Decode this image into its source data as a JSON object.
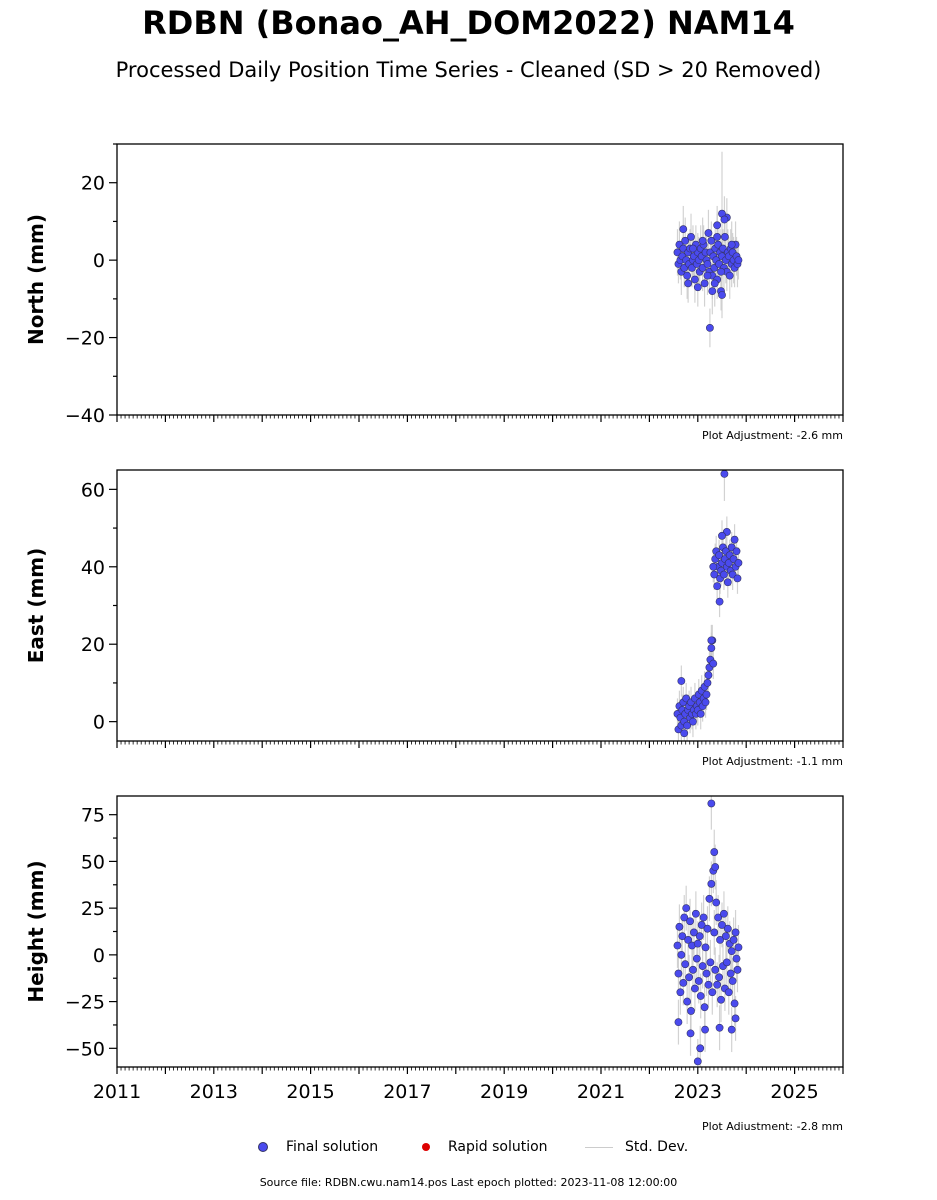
{
  "title": "RDBN (Bonao_AH_DOM2022) NAM14",
  "subtitle": "Processed Daily Position Time Series - Cleaned (SD > 20 Removed)",
  "colors": {
    "final": "#4a4aee",
    "final_edge": "#333366",
    "rapid": "#dd0000",
    "stddev": "#c8c8c8"
  },
  "chart_data": [
    {
      "type": "scatter",
      "ylabel": "North (mm)",
      "ylim": [
        -40,
        30
      ],
      "yticks": [
        -40,
        -20,
        0,
        20
      ],
      "ytick_labels": [
        "−40",
        "−20",
        "0",
        "20"
      ],
      "xlim": [
        2011,
        2026
      ],
      "adjustment": "Plot Adjustment: -2.6 mm",
      "series_name": "Final solution",
      "x": [
        2022.58,
        2022.6,
        2022.62,
        2022.64,
        2022.66,
        2022.68,
        2022.7,
        2022.72,
        2022.74,
        2022.76,
        2022.78,
        2022.8,
        2022.82,
        2022.84,
        2022.86,
        2022.88,
        2022.9,
        2022.92,
        2022.94,
        2022.96,
        2022.98,
        2023.0,
        2023.02,
        2023.04,
        2023.06,
        2023.08,
        2023.1,
        2023.12,
        2023.14,
        2023.16,
        2023.18,
        2023.2,
        2023.22,
        2023.24,
        2023.26,
        2023.28,
        2023.3,
        2023.32,
        2023.34,
        2023.36,
        2023.38,
        2023.4,
        2023.42,
        2023.44,
        2023.46,
        2023.48,
        2023.5,
        2023.52,
        2023.54,
        2023.56,
        2023.58,
        2023.6,
        2023.62,
        2023.64,
        2023.66,
        2023.68,
        2023.7,
        2023.72,
        2023.74,
        2023.76,
        2023.78,
        2023.8,
        2023.82,
        2023.84,
        2022.7,
        2022.8,
        2022.9,
        2023.0,
        2023.1,
        2023.2,
        2023.3,
        2023.4,
        2023.5,
        2023.6,
        2023.7,
        2023.25,
        2023.5,
        2023.55,
        2023.4,
        2023.48,
        2023.35
      ],
      "y": [
        2,
        -1,
        4,
        0,
        -3,
        1,
        3,
        -2,
        5,
        0,
        -4,
        2,
        -1,
        3,
        6,
        -2,
        0,
        1,
        -5,
        4,
        -1,
        2,
        0,
        -3,
        3,
        1,
        -2,
        4,
        -6,
        2,
        0,
        -1,
        7,
        -3,
        2,
        5,
        -4,
        1,
        -2,
        3,
        0,
        -5,
        4,
        -1,
        2,
        -8,
        1,
        3,
        -2,
        6,
        0,
        -3,
        2,
        1,
        -4,
        3,
        -1,
        2,
        0,
        -2,
        4,
        1,
        -1,
        0,
        8,
        -6,
        3,
        -7,
        5,
        -4,
        -8,
        9,
        -9,
        11,
        4,
        -17.5,
        12,
        10.5,
        6,
        -3,
        -6
      ],
      "err": [
        6,
        5,
        6,
        5,
        6,
        5,
        6,
        5,
        6,
        5,
        6,
        5,
        6,
        5,
        6,
        5,
        6,
        5,
        6,
        5,
        6,
        5,
        6,
        5,
        6,
        5,
        6,
        5,
        6,
        5,
        6,
        5,
        6,
        5,
        6,
        5,
        6,
        5,
        6,
        5,
        6,
        5,
        6,
        5,
        6,
        5,
        6,
        5,
        6,
        5,
        6,
        5,
        6,
        5,
        6,
        5,
        6,
        5,
        6,
        5,
        6,
        5,
        6,
        5,
        6,
        5,
        6,
        5,
        6,
        5,
        6,
        5,
        6,
        5,
        6,
        5,
        16,
        6,
        6,
        6,
        6
      ]
    },
    {
      "type": "scatter",
      "ylabel": "East (mm)",
      "ylim": [
        -5,
        65
      ],
      "yticks": [
        0,
        20,
        40,
        60
      ],
      "ytick_labels": [
        "0",
        "20",
        "40",
        "60"
      ],
      "xlim": [
        2011,
        2026
      ],
      "adjustment": "Plot Adjustment: -1.1 mm",
      "series_name": "Final solution",
      "x": [
        2022.58,
        2022.6,
        2022.62,
        2022.64,
        2022.66,
        2022.68,
        2022.7,
        2022.72,
        2022.74,
        2022.76,
        2022.78,
        2022.8,
        2022.82,
        2022.84,
        2022.86,
        2022.88,
        2022.9,
        2022.92,
        2022.94,
        2022.96,
        2022.98,
        2023.0,
        2023.02,
        2023.04,
        2023.06,
        2023.08,
        2023.1,
        2023.12,
        2023.14,
        2023.16,
        2023.18,
        2023.2,
        2023.22,
        2023.24,
        2023.26,
        2023.28,
        2023.3,
        2023.32,
        2023.34,
        2023.36,
        2023.38,
        2023.4,
        2023.42,
        2023.44,
        2023.46,
        2023.48,
        2023.5,
        2023.52,
        2023.54,
        2023.56,
        2023.58,
        2023.6,
        2023.62,
        2023.64,
        2023.66,
        2023.68,
        2023.7,
        2023.72,
        2023.74,
        2023.76,
        2023.78,
        2023.8,
        2023.82,
        2023.84,
        2022.66,
        2022.72,
        2023.28,
        2023.32,
        2023.55,
        2023.6,
        2023.45,
        2023.5
      ],
      "y": [
        2,
        -2,
        4,
        1,
        -1,
        3,
        5,
        0,
        2,
        6,
        -1,
        3,
        4,
        1,
        5,
        2,
        0,
        3,
        6,
        2,
        4,
        3,
        7,
        5,
        2,
        8,
        4,
        6,
        9,
        5,
        7,
        10,
        12,
        14,
        16,
        19,
        21,
        15,
        38,
        42,
        44,
        35,
        40,
        43,
        37,
        39,
        41,
        45,
        38,
        42,
        44,
        40,
        36,
        41,
        43,
        39,
        45,
        38,
        42,
        47,
        40,
        44,
        37,
        41,
        10.5,
        -3,
        21,
        40,
        64,
        49,
        31,
        48
      ],
      "err": [
        4,
        4,
        4,
        4,
        4,
        4,
        4,
        4,
        4,
        4,
        4,
        4,
        4,
        4,
        4,
        4,
        4,
        4,
        4,
        4,
        4,
        4,
        4,
        4,
        4,
        4,
        4,
        4,
        4,
        4,
        4,
        4,
        4,
        4,
        4,
        4,
        4,
        4,
        4,
        4,
        4,
        4,
        4,
        4,
        4,
        4,
        4,
        4,
        4,
        4,
        4,
        4,
        4,
        4,
        4,
        4,
        4,
        4,
        4,
        4,
        4,
        4,
        4,
        4,
        4,
        4,
        4,
        4,
        7,
        4,
        4,
        4
      ]
    },
    {
      "type": "scatter",
      "ylabel": "Height (mm)",
      "ylim": [
        -60,
        85
      ],
      "yticks": [
        -50,
        -25,
        0,
        25,
        50,
        75
      ],
      "ytick_labels": [
        "−50",
        "−25",
        "0",
        "25",
        "50",
        "75"
      ],
      "xlim": [
        2011,
        2026
      ],
      "xticks": [
        2011,
        2013,
        2015,
        2017,
        2019,
        2021,
        2023,
        2025
      ],
      "xtick_labels": [
        "2011",
        "2013",
        "2015",
        "2017",
        "2019",
        "2021",
        "2023",
        "2025"
      ],
      "adjustment": "Plot Adjustment: -2.8 mm",
      "series_name": "Final solution",
      "x": [
        2022.58,
        2022.6,
        2022.62,
        2022.64,
        2022.66,
        2022.68,
        2022.7,
        2022.72,
        2022.74,
        2022.76,
        2022.78,
        2022.8,
        2022.82,
        2022.84,
        2022.86,
        2022.88,
        2022.9,
        2022.92,
        2022.94,
        2022.96,
        2022.98,
        2023.0,
        2023.02,
        2023.04,
        2023.06,
        2023.08,
        2023.1,
        2023.12,
        2023.14,
        2023.16,
        2023.18,
        2023.2,
        2023.22,
        2023.24,
        2023.26,
        2023.28,
        2023.3,
        2023.32,
        2023.34,
        2023.36,
        2023.38,
        2023.4,
        2023.42,
        2023.44,
        2023.46,
        2023.48,
        2023.5,
        2023.52,
        2023.54,
        2023.56,
        2023.58,
        2023.6,
        2023.62,
        2023.64,
        2023.66,
        2023.68,
        2023.7,
        2023.72,
        2023.74,
        2023.76,
        2023.78,
        2023.8,
        2023.82,
        2023.84,
        2023.28,
        2023.34,
        2023.36,
        2023.0,
        2022.6,
        2022.85,
        2023.05,
        2023.15,
        2023.45,
        2023.7,
        2023.78
      ],
      "y": [
        5,
        -10,
        15,
        -20,
        0,
        10,
        -15,
        20,
        -5,
        25,
        -25,
        8,
        -12,
        18,
        -30,
        5,
        -8,
        12,
        -18,
        22,
        -2,
        6,
        -14,
        10,
        -22,
        16,
        -6,
        20,
        -28,
        4,
        -10,
        14,
        -16,
        30,
        -4,
        38,
        -20,
        45,
        12,
        -8,
        28,
        -16,
        20,
        -12,
        8,
        -24,
        16,
        -6,
        22,
        -18,
        10,
        -4,
        14,
        -20,
        6,
        -10,
        2,
        -14,
        8,
        -26,
        12,
        -2,
        -8,
        4,
        81,
        55,
        47,
        -57,
        -36,
        -42,
        -50,
        -40,
        -39,
        -40,
        -34
      ],
      "err": [
        12,
        12,
        12,
        12,
        12,
        12,
        12,
        12,
        12,
        12,
        12,
        12,
        12,
        12,
        12,
        12,
        12,
        12,
        12,
        12,
        12,
        12,
        12,
        12,
        12,
        12,
        12,
        12,
        12,
        12,
        12,
        12,
        12,
        12,
        12,
        12,
        12,
        12,
        12,
        12,
        12,
        12,
        12,
        12,
        12,
        12,
        12,
        12,
        12,
        12,
        12,
        12,
        12,
        12,
        12,
        12,
        12,
        12,
        12,
        12,
        12,
        12,
        12,
        12,
        14,
        12,
        12,
        12,
        12,
        12,
        12,
        12,
        12,
        12,
        12
      ]
    }
  ],
  "legend": {
    "final": "Final solution",
    "rapid": "Rapid solution",
    "stddev": "Std. Dev."
  },
  "footer": "Source file: RDBN.cwu.nam14.pos  Last epoch plotted: 2023-11-08 12:00:00"
}
